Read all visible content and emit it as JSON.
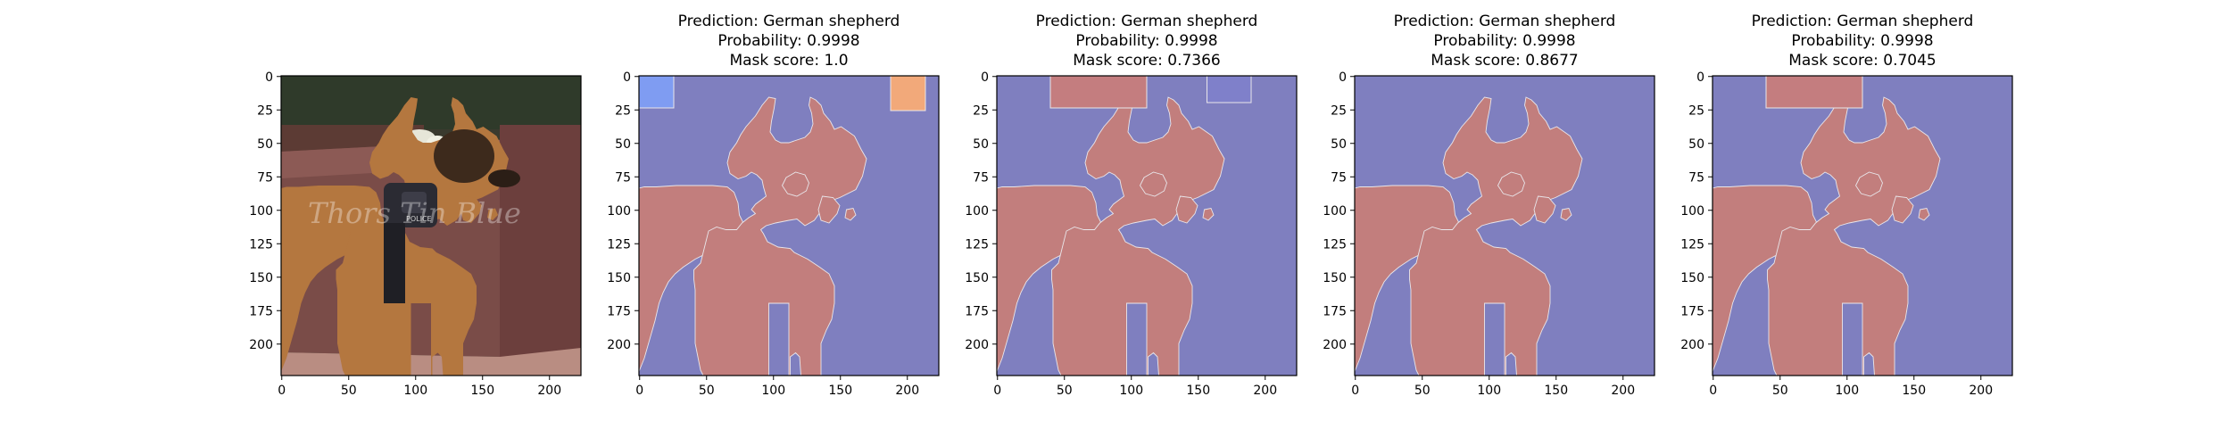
{
  "chart_data": [
    {
      "type": "image",
      "title_lines": [],
      "content": "photo",
      "watermark": "Thors Tin Blue",
      "harness_text": "POLICE",
      "xticks": [
        "0",
        "50",
        "100",
        "150",
        "200"
      ],
      "yticks": [
        "0",
        "25",
        "50",
        "75",
        "100",
        "125",
        "150",
        "175",
        "200"
      ],
      "xlim": [
        0,
        224
      ],
      "ylim": [
        224,
        0
      ]
    },
    {
      "type": "heatmap",
      "title_lines": [
        "Prediction: German shepherd",
        "Probability: 0.9998",
        "Mask score: 1.0"
      ],
      "prediction": "German shepherd",
      "probability": 0.9998,
      "mask_score": 1.0,
      "xticks": [
        "0",
        "50",
        "100",
        "150",
        "200"
      ],
      "yticks": [
        "0",
        "25",
        "50",
        "75",
        "100",
        "125",
        "150",
        "175",
        "200"
      ],
      "xlim": [
        0,
        224
      ],
      "ylim": [
        224,
        0
      ],
      "patches": [
        {
          "x": [
            0,
            26
          ],
          "y": [
            0,
            24
          ],
          "color": "#7f9cf2"
        },
        {
          "x": [
            188,
            214
          ],
          "y": [
            0,
            26
          ],
          "color": "#f2a97a"
        }
      ]
    },
    {
      "type": "heatmap",
      "title_lines": [
        "Prediction: German shepherd",
        "Probability: 0.9998",
        "Mask score: 0.7366"
      ],
      "prediction": "German shepherd",
      "probability": 0.9998,
      "mask_score": 0.7366,
      "xticks": [
        "0",
        "50",
        "100",
        "150",
        "200"
      ],
      "yticks": [
        "0",
        "25",
        "50",
        "75",
        "100",
        "125",
        "150",
        "175",
        "200"
      ],
      "xlim": [
        0,
        224
      ],
      "ylim": [
        224,
        0
      ],
      "patches": [
        {
          "x": [
            40,
            112
          ],
          "y": [
            0,
            24
          ],
          "color": "#c47d7f"
        },
        {
          "x": [
            157,
            190
          ],
          "y": [
            0,
            20
          ],
          "color": "#7f80ca"
        }
      ]
    },
    {
      "type": "heatmap",
      "title_lines": [
        "Prediction: German shepherd",
        "Probability: 0.9998",
        "Mask score: 0.8677"
      ],
      "prediction": "German shepherd",
      "probability": 0.9998,
      "mask_score": 0.8677,
      "xticks": [
        "0",
        "50",
        "100",
        "150",
        "200"
      ],
      "yticks": [
        "0",
        "25",
        "50",
        "75",
        "100",
        "125",
        "150",
        "175",
        "200"
      ],
      "xlim": [
        0,
        224
      ],
      "ylim": [
        224,
        0
      ],
      "patches": []
    },
    {
      "type": "heatmap",
      "title_lines": [
        "Prediction: German shepherd",
        "Probability: 0.9998",
        "Mask score: 0.7045"
      ],
      "prediction": "German shepherd",
      "probability": 0.9998,
      "mask_score": 0.7045,
      "xticks": [
        "0",
        "50",
        "100",
        "150",
        "200"
      ],
      "yticks": [
        "0",
        "25",
        "50",
        "75",
        "100",
        "125",
        "150",
        "175",
        "200"
      ],
      "xlim": [
        0,
        224
      ],
      "ylim": [
        224,
        0
      ],
      "patches": [
        {
          "x": [
            40,
            112
          ],
          "y": [
            0,
            24
          ],
          "color": "#c47d7f"
        }
      ]
    }
  ],
  "colors": {
    "background_mask": "#7f7fbf",
    "dog_mask": "#c27e7d",
    "mask_edge": "#e9e6ea"
  }
}
